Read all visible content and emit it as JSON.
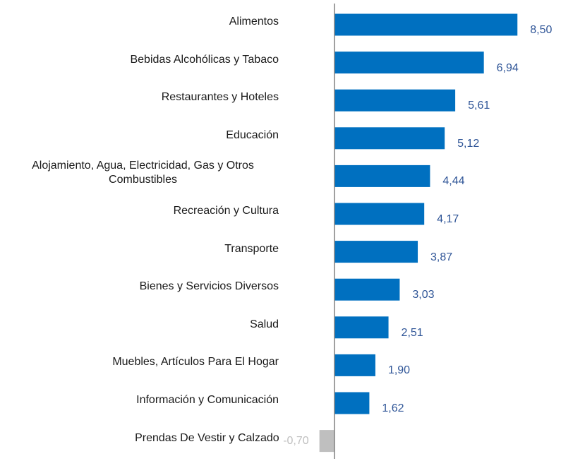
{
  "chart_data": {
    "type": "bar",
    "orientation": "horizontal",
    "categories": [
      "Alimentos",
      "Bebidas Alcohólicas y Tabaco",
      "Restaurantes y Hoteles",
      "Educación",
      "Alojamiento, Agua, Electricidad, Gas y Otros Combustibles",
      "Recreación y Cultura",
      "Transporte",
      "Bienes y Servicios Diversos",
      "Salud",
      "Muebles, Artículos Para El Hogar",
      "Información y Comunicación",
      "Prendas De Vestir y Calzado"
    ],
    "values": [
      8.5,
      6.94,
      5.61,
      5.12,
      4.44,
      4.17,
      3.87,
      3.03,
      2.51,
      1.9,
      1.62,
      -0.7
    ],
    "value_labels": [
      "8,50",
      "6,94",
      "5,61",
      "5,12",
      "4,44",
      "4,17",
      "3,87",
      "3,03",
      "2,51",
      "1,90",
      "1,62",
      "-0,70"
    ],
    "color": "#0070c0",
    "negative_color": "#bfbfbf",
    "label_color": "#2f5597",
    "negative_label_color": "#bfbfbf"
  }
}
